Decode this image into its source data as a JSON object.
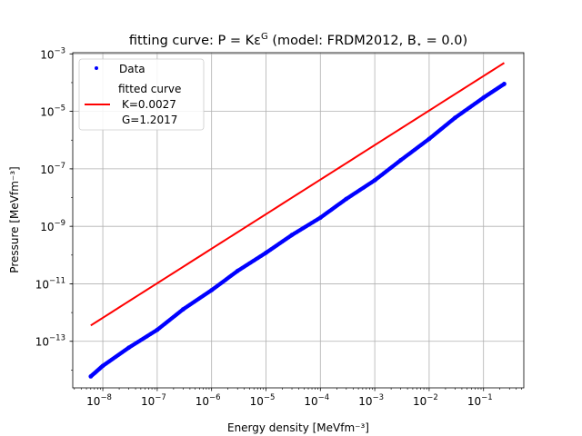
{
  "chart_data": {
    "type": "scatter",
    "title": "fitting curve: P = Kε",
    "title_sup": "G",
    "title_model": " (model: FRDM2012, B",
    "title_sub": "⋆",
    "title_end": " = 0.0)",
    "xlabel": "Energy density [MeVfm⁻³]",
    "ylabel": "Pressure [MeVfm⁻³]",
    "xscale": "log",
    "yscale": "log",
    "xlim": [
      2.8e-09,
      0.55
    ],
    "ylim": [
      2.4e-15,
      0.0011
    ],
    "grid": true,
    "legend_position": "top-left",
    "x_ticks": [
      {
        "value": 1e-08,
        "base": "10",
        "exp": "−8"
      },
      {
        "value": 1e-07,
        "base": "10",
        "exp": "−7"
      },
      {
        "value": 1e-06,
        "base": "10",
        "exp": "−6"
      },
      {
        "value": 1e-05,
        "base": "10",
        "exp": "−5"
      },
      {
        "value": 0.0001,
        "base": "10",
        "exp": "−4"
      },
      {
        "value": 0.001,
        "base": "10",
        "exp": "−3"
      },
      {
        "value": 0.01,
        "base": "10",
        "exp": "−2"
      },
      {
        "value": 0.1,
        "base": "10",
        "exp": "−1"
      }
    ],
    "y_ticks": [
      {
        "value": 1e-13,
        "base": "10",
        "exp": "−13"
      },
      {
        "value": 1e-11,
        "base": "10",
        "exp": "−11"
      },
      {
        "value": 1e-09,
        "base": "10",
        "exp": "−9"
      },
      {
        "value": 1e-07,
        "base": "10",
        "exp": "−7"
      },
      {
        "value": 1e-05,
        "base": "10",
        "exp": "−5"
      },
      {
        "value": 0.001,
        "base": "10",
        "exp": "−3"
      }
    ],
    "series": [
      {
        "name": "Data",
        "kind": "points",
        "color": "#0000ff",
        "x": [
          6e-09,
          1e-08,
          3e-08,
          1e-07,
          3e-07,
          1e-06,
          3e-06,
          1e-05,
          3e-05,
          0.0001,
          0.0003,
          0.001,
          0.003,
          0.01,
          0.03,
          0.1,
          0.24
        ],
        "y": [
          6e-15,
          1.4e-14,
          6e-14,
          2.5e-13,
          1.3e-12,
          6e-12,
          2.8e-11,
          1.2e-10,
          5e-10,
          2e-09,
          9e-09,
          4e-08,
          2e-07,
          1.1e-06,
          6e-06,
          3e-05,
          9e-05
        ]
      },
      {
        "name": "fitted curve",
        "name_lines": [
          "fitted curve",
          "K=0.0027",
          "G=1.2017"
        ],
        "kind": "line",
        "color": "#ff0000",
        "K": 0.0027,
        "G": 1.2017,
        "x_range": [
          6e-09,
          0.24
        ]
      }
    ]
  }
}
